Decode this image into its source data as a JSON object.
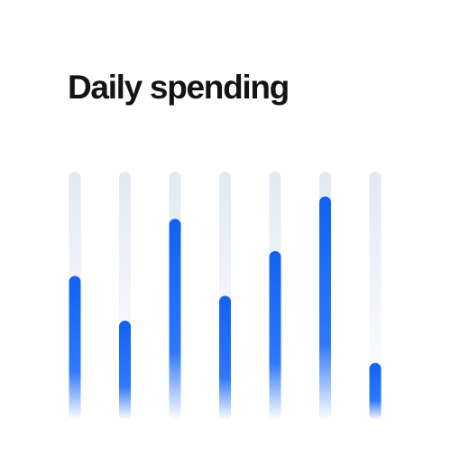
{
  "chart_data": {
    "type": "bar",
    "title": "Daily spending",
    "categories": [
      "",
      "",
      "",
      "",
      "",
      "",
      ""
    ],
    "values": [
      58,
      40,
      81,
      50,
      68,
      90,
      23
    ],
    "ylim": [
      0,
      100
    ],
    "grid": false,
    "legend": "none",
    "colors": {
      "bar": "#1162f1",
      "bar_fade": "#ffffff",
      "track": "#e3e8f1",
      "track_fade": "#ffffff",
      "title": "#141414"
    }
  }
}
